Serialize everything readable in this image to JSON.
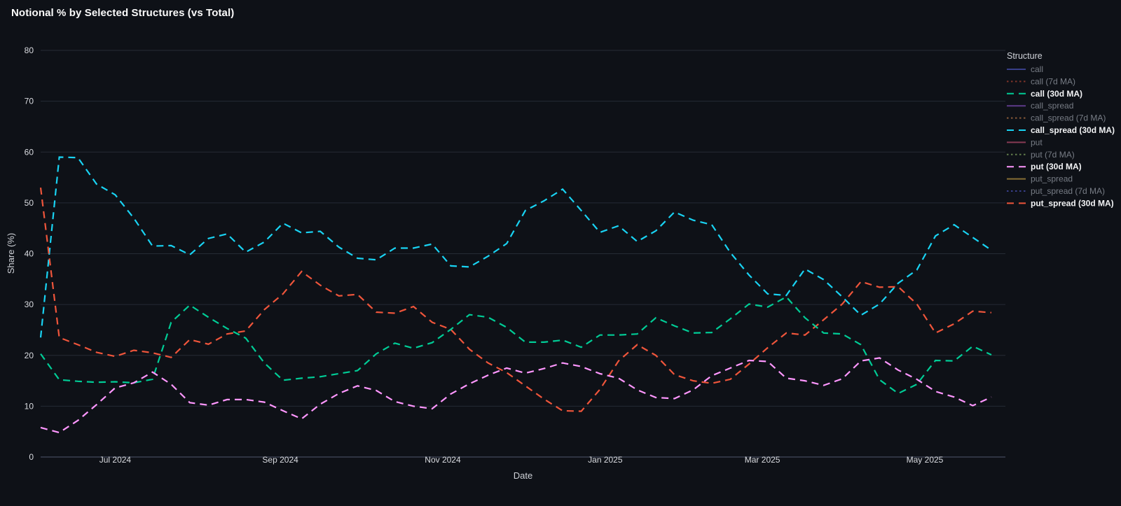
{
  "title": "Notional % by Selected Structures (vs Total)",
  "colors": {
    "background": "#0e1117",
    "grid": "#262b35",
    "zero_line": "#3a4150",
    "title_text": "#fafafa",
    "tick_text": "#d9dbe0",
    "axis_title_text": "#cfd2d8",
    "legend_title_text": "#cfd2d8",
    "legend_text_active": "#f2f3f5",
    "legend_text_muted": "#777c85"
  },
  "axes": {
    "x_title": "Date",
    "y_title": "Share (%)",
    "y_ticks": [
      "0",
      "10",
      "20",
      "30",
      "40",
      "50",
      "60",
      "70",
      "80"
    ],
    "y_range": [
      0,
      80
    ],
    "x_ticks": [
      {
        "label": "Jul 2024",
        "day": 28
      },
      {
        "label": "Sep 2024",
        "day": 90
      },
      {
        "label": "Nov 2024",
        "day": 151
      },
      {
        "label": "Jan 2025",
        "day": 212
      },
      {
        "label": "Mar 2025",
        "day": 271
      },
      {
        "label": "May 2025",
        "day": 332
      }
    ]
  },
  "legend": {
    "title": "Structure",
    "items": [
      {
        "label": "call",
        "color": "#636efa",
        "dash": "solid",
        "active": false
      },
      {
        "label": "call (7d MA)",
        "color": "#EF553B",
        "dash": "dot",
        "active": false
      },
      {
        "label": "call (30d MA)",
        "color": "#00cc96",
        "dash": "dash",
        "active": true
      },
      {
        "label": "call_spread",
        "color": "#ab63fa",
        "dash": "solid",
        "active": false
      },
      {
        "label": "call_spread (7d MA)",
        "color": "#FFA15A",
        "dash": "dot",
        "active": false
      },
      {
        "label": "call_spread (30d MA)",
        "color": "#19d3f3",
        "dash": "dash",
        "active": true
      },
      {
        "label": "put",
        "color": "#FF6692",
        "dash": "solid",
        "active": false
      },
      {
        "label": "put (7d MA)",
        "color": "#B6E880",
        "dash": "dot",
        "active": false
      },
      {
        "label": "put (30d MA)",
        "color": "#FF97FF",
        "dash": "dash",
        "active": true
      },
      {
        "label": "put_spread",
        "color": "#FECB52",
        "dash": "solid",
        "active": false
      },
      {
        "label": "put_spread (7d MA)",
        "color": "#636efa",
        "dash": "dot",
        "active": false
      },
      {
        "label": "put_spread (30d MA)",
        "color": "#EF553B",
        "dash": "dash",
        "active": true
      }
    ]
  },
  "chart_data": {
    "type": "line",
    "title": "Notional % by Selected Structures (vs Total)",
    "xlabel": "Date",
    "ylabel": "Share (%)",
    "ylim": [
      0,
      80
    ],
    "grid": "horizontal-only",
    "legend_position": "right",
    "x_start_date": "2024-06-03",
    "x_step_days": 7,
    "x_days": [
      0,
      7,
      14,
      21,
      28,
      35,
      42,
      49,
      56,
      63,
      70,
      77,
      84,
      91,
      98,
      105,
      112,
      119,
      126,
      133,
      140,
      147,
      154,
      161,
      168,
      175,
      182,
      189,
      196,
      203,
      210,
      217,
      224,
      231,
      238,
      245,
      252,
      259,
      266,
      273,
      280,
      287,
      294,
      301,
      308,
      315,
      322,
      329,
      336,
      343,
      350,
      357
    ],
    "series": [
      {
        "name": "call_spread (30d MA)",
        "color": "#19d3f3",
        "dash": "dash",
        "values": [
          23.5,
          59,
          58.9,
          53.7,
          51.6,
          47,
          41.5,
          41.6,
          39.8,
          43,
          43.9,
          40.3,
          42.3,
          46,
          44.1,
          44.4,
          41.3,
          39.1,
          38.8,
          41.1,
          41.1,
          41.9,
          37.6,
          37.4,
          39.5,
          42,
          48.5,
          50.4,
          52.7,
          48.5,
          44.2,
          45.5,
          42.4,
          44.5,
          48.2,
          46.6,
          45.7,
          40.2,
          35.8,
          32.1,
          31.8,
          37,
          34.9,
          31.5,
          27.9,
          30.1,
          34.2,
          36.8,
          43.5,
          45.7,
          43.2,
          40.7
        ]
      },
      {
        "name": "put_spread (30d MA)",
        "color": "#EF553B",
        "dash": "dash",
        "values": [
          53,
          23.5,
          22.1,
          20.6,
          19.8,
          21,
          20.5,
          19.6,
          23.1,
          22.2,
          24.2,
          24.8,
          29,
          32.1,
          36.5,
          33.8,
          31.7,
          32,
          28.5,
          28.3,
          29.6,
          26.5,
          25.1,
          21.2,
          18.5,
          16.6,
          14,
          11.4,
          9.1,
          9,
          13.3,
          18.9,
          22.1,
          20,
          16.2,
          15,
          14.5,
          15.3,
          18.3,
          21.5,
          24.4,
          24,
          27,
          30.1,
          34.5,
          33.4,
          33.5,
          30.1,
          24.4,
          26.2,
          28.7,
          28.4
        ]
      },
      {
        "name": "call (30d MA)",
        "color": "#00cc96",
        "dash": "dash",
        "values": [
          20.3,
          15.2,
          14.9,
          14.7,
          14.8,
          14.6,
          15.3,
          26.5,
          29.9,
          27.5,
          25.3,
          23.4,
          18.5,
          15.1,
          15.5,
          15.8,
          16.4,
          17,
          20.3,
          22.4,
          21.4,
          22.5,
          25.1,
          28,
          27.5,
          25.5,
          22.6,
          22.6,
          23,
          21.6,
          24,
          24,
          24.2,
          27.4,
          25.8,
          24.4,
          24.5,
          27.2,
          30.1,
          29.5,
          31.5,
          27.4,
          24.4,
          24.2,
          22.1,
          15.2,
          12.5,
          14.3,
          19,
          18.9,
          21.8,
          20.1
        ]
      },
      {
        "name": "put (30d MA)",
        "color": "#FF97FF",
        "dash": "dash",
        "values": [
          5.8,
          4.8,
          7.2,
          10.3,
          13.6,
          14.6,
          16.7,
          14.3,
          10.7,
          10.2,
          11.3,
          11.3,
          10.8,
          9.1,
          7.5,
          10.4,
          12.5,
          14,
          13.1,
          10.9,
          10,
          9.5,
          12.4,
          14.4,
          16.1,
          17.5,
          16.5,
          17.4,
          18.5,
          17.8,
          16.4,
          15.5,
          13.2,
          11.7,
          11.5,
          13.2,
          16,
          17.5,
          19,
          18.8,
          15.5,
          15,
          14.1,
          15.4,
          18.9,
          19.5,
          17.1,
          15.3,
          12.9,
          11.8,
          10.1,
          11.8
        ]
      }
    ],
    "hidden_series": [
      "call",
      "call (7d MA)",
      "call_spread",
      "call_spread (7d MA)",
      "put",
      "put (7d MA)",
      "put_spread",
      "put_spread (7d MA)"
    ]
  }
}
